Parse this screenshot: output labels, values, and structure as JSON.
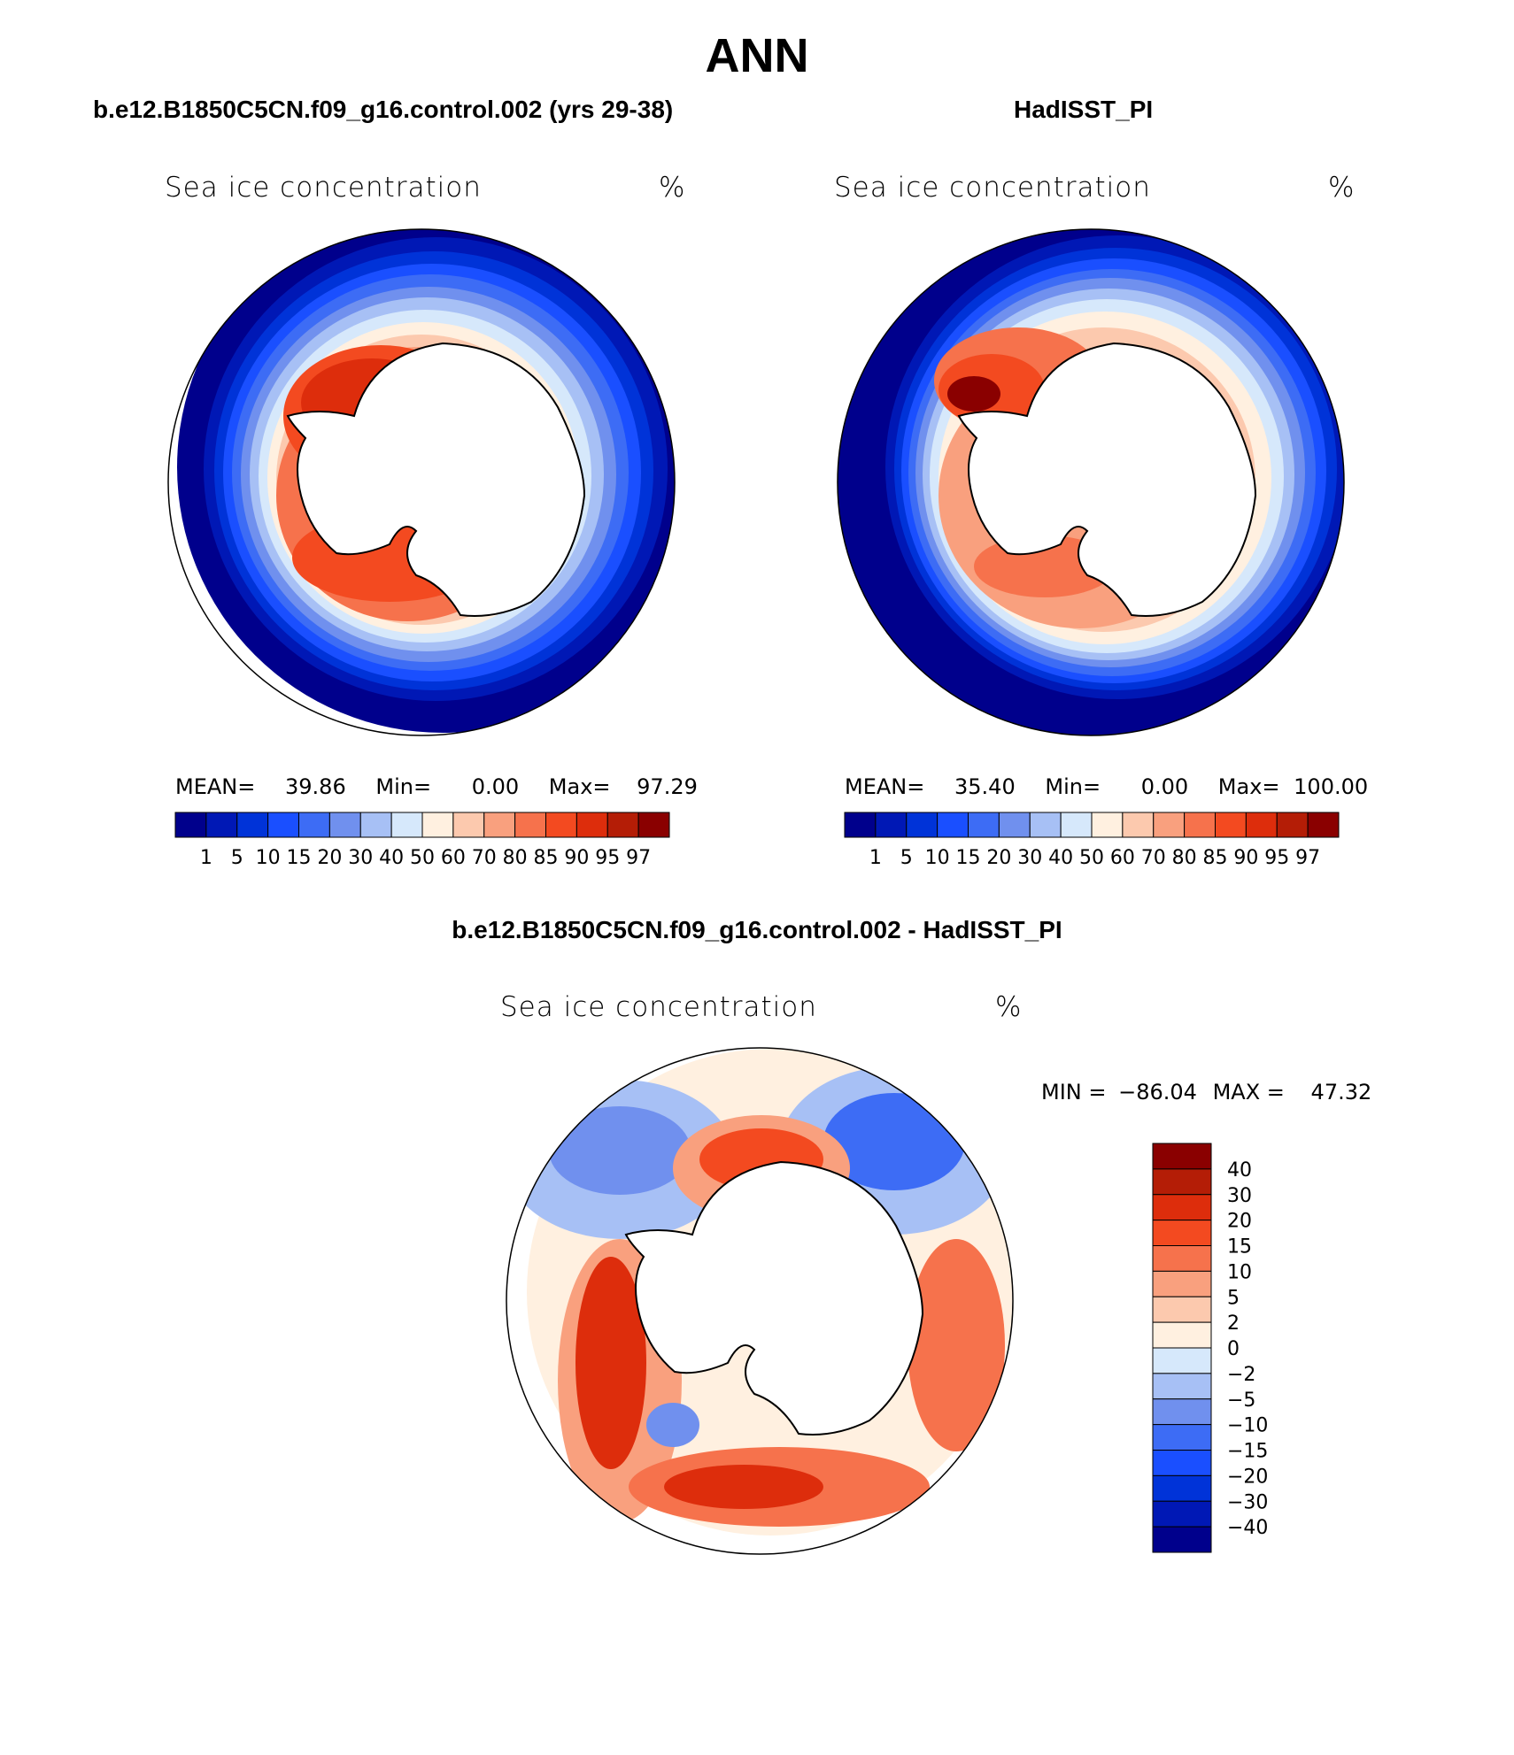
{
  "main_title": "ANN",
  "panels": [
    {
      "case_title": "b.e12.B1850C5CN.f09_g16.control.002 (yrs 29-38)",
      "field_label": "Sea ice concentration",
      "units": "%",
      "stats": {
        "mean_label": "MEAN=",
        "mean": "39.86",
        "min_label": "Min=",
        "min": "0.00",
        "max_label": "Max=",
        "max": "97.29"
      }
    },
    {
      "case_title": "HadISST_PI",
      "field_label": "Sea ice concentration",
      "units": "%",
      "stats": {
        "mean_label": "MEAN=",
        "mean": "35.40",
        "min_label": "Min=",
        "min": "0.00",
        "max_label": "Max=",
        "max": "100.00"
      }
    }
  ],
  "concentration_colorbar": {
    "colors": [
      "#00008c",
      "#0018b5",
      "#0033d8",
      "#1a4fff",
      "#3d6cf5",
      "#7090ee",
      "#a7c0f5",
      "#d6e8fb",
      "#fff0e0",
      "#fcc9ae",
      "#f9a07e",
      "#f6724c",
      "#f34a20",
      "#dd2d0c",
      "#b41d06",
      "#8a0000"
    ],
    "labels": [
      "1",
      "5",
      "10",
      "15",
      "20",
      "30",
      "40",
      "50",
      "60",
      "70",
      "80",
      "85",
      "90",
      "95",
      "97"
    ]
  },
  "difference_panel": {
    "title": "b.e12.B1850C5CN.f09_g16.control.002 - HadISST_PI",
    "field_label": "Sea ice concentration",
    "units": "%",
    "min_label": "MIN =",
    "min": "−86.04",
    "max_label": "MAX =",
    "max": "47.32",
    "colorbar": {
      "colors_top_to_bottom": [
        "#8a0000",
        "#b41d06",
        "#dd2d0c",
        "#f34a20",
        "#f6724c",
        "#f9a07e",
        "#fcc9ae",
        "#fff0e0",
        "#d6e8fb",
        "#a7c0f5",
        "#7090ee",
        "#3d6cf5",
        "#1a4fff",
        "#0033d8",
        "#0018b5",
        "#00008c"
      ],
      "labels_top_to_bottom": [
        "40",
        "30",
        "20",
        "15",
        "10",
        "5",
        "2",
        "0",
        "−2",
        "−5",
        "−10",
        "−15",
        "−20",
        "−30",
        "−40"
      ]
    }
  }
}
